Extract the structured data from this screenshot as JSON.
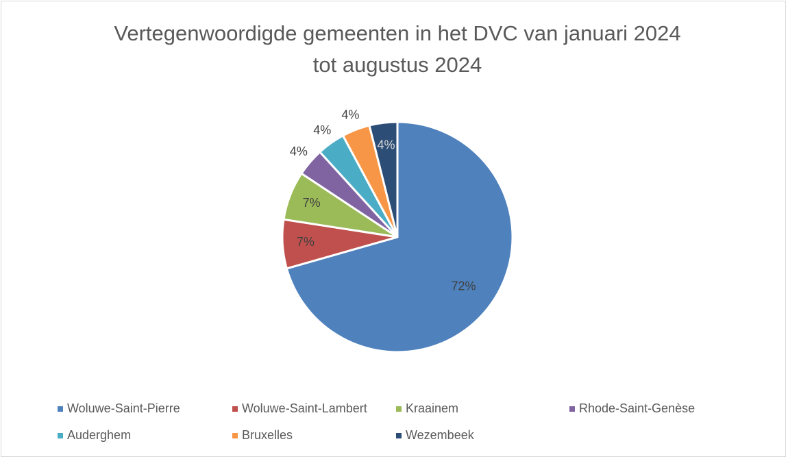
{
  "chart_data": {
    "type": "pie",
    "title": "Vertegenwoordigde gemeenten in het DVC van januari 2024 tot augustus 2024",
    "categories": [
      "Woluwe-Saint-Pierre",
      "Woluwe-Saint-Lambert",
      "Kraainem",
      "Rhode-Saint-Genèse",
      "Auderghem",
      "Bruxelles",
      "Wezembeek"
    ],
    "values": [
      72,
      7,
      7,
      4,
      4,
      4,
      4
    ],
    "value_labels": [
      "72%",
      "7%",
      "7%",
      "4%",
      "4%",
      "4%",
      "4%"
    ],
    "colors": [
      "#4f81bd",
      "#c0504d",
      "#9bbb59",
      "#8064a2",
      "#4bacc6",
      "#f79646",
      "#2c4d75"
    ],
    "legend": "bottom"
  }
}
